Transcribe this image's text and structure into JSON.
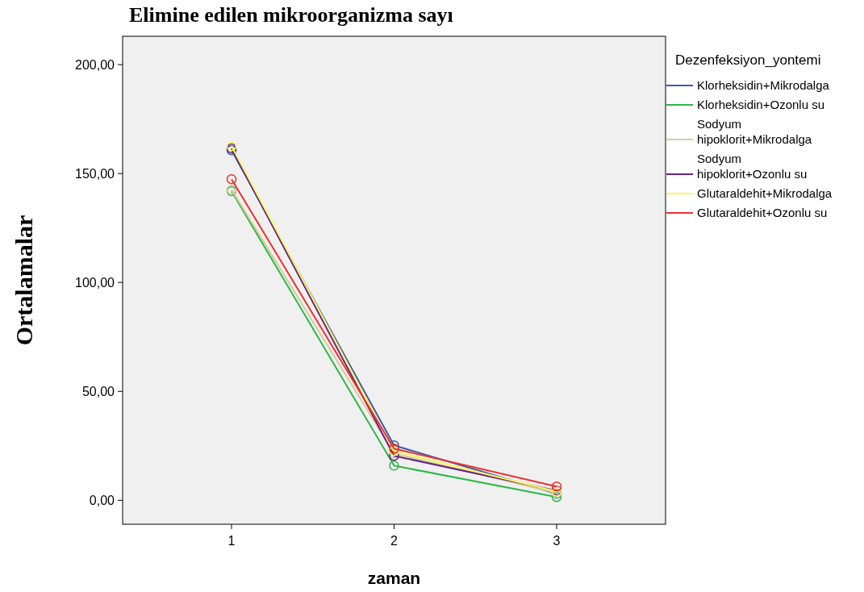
{
  "chart_data": {
    "type": "line",
    "title": "Elimine edilen mikroorganizma sayı",
    "xlabel": "zaman",
    "ylabel": "Ortalamalar",
    "legend_title": "Dezenfeksiyon_yontemi",
    "legend": "right",
    "marker": "circle",
    "grid": false,
    "categories": [
      "1",
      "2",
      "3"
    ],
    "ylim": [
      -11,
      213
    ],
    "yticks": [
      {
        "value": 0,
        "label": "0,00"
      },
      {
        "value": 50,
        "label": "50,00"
      },
      {
        "value": 100,
        "label": "100,00"
      },
      {
        "value": 150,
        "label": "150,00"
      },
      {
        "value": 200,
        "label": "200,00"
      }
    ],
    "series": [
      {
        "name": "Klorheksidin+Mikrodalga",
        "color": "#3e58ac",
        "values": [
          160.7,
          25.2,
          3.0
        ]
      },
      {
        "name": "Klorheksidin+Ozonlu su",
        "color": "#2eb848",
        "values": [
          141.9,
          15.9,
          1.5
        ]
      },
      {
        "name": "Sodyum hipoklorit+Mikrodalga",
        "color": "#d4cc9c",
        "values": [
          142.6,
          21.5,
          3.3
        ]
      },
      {
        "name": "Sodyum hipoklorit+Ozonlu su",
        "color": "#68248c",
        "values": [
          161.5,
          20.4,
          4.4
        ]
      },
      {
        "name": "Glutaraldehit+Mikrodalga",
        "color": "#f8f858",
        "values": [
          162.6,
          22.6,
          4.0
        ]
      },
      {
        "name": "Glutaraldehit+Ozonlu su",
        "color": "#f03030",
        "values": [
          147.4,
          23.7,
          6.3
        ]
      }
    ]
  }
}
